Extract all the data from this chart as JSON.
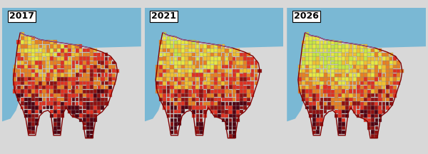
{
  "panels": [
    {
      "year": "2017"
    },
    {
      "year": "2021"
    },
    {
      "year": "2026"
    }
  ],
  "background_color": "#d8d8d8",
  "panel_bg": "#ffffff",
  "water_color": "#7ab8d4",
  "outside_color": "#ffffff",
  "label_fontsize": 9,
  "label_bg": "#ffffff",
  "label_border": "#000000",
  "colors": [
    "#c8e640",
    "#e8e840",
    "#f0c030",
    "#e88020",
    "#e03020",
    "#901010",
    "#500010"
  ],
  "fig_width": 6.0,
  "fig_height": 2.16,
  "dpi": 100,
  "shore_color": "#9060a0",
  "boundary_color": "#800000",
  "grid_edge": "#888888",
  "grid_lw": 0.25,
  "boundary_lw": 1.0
}
